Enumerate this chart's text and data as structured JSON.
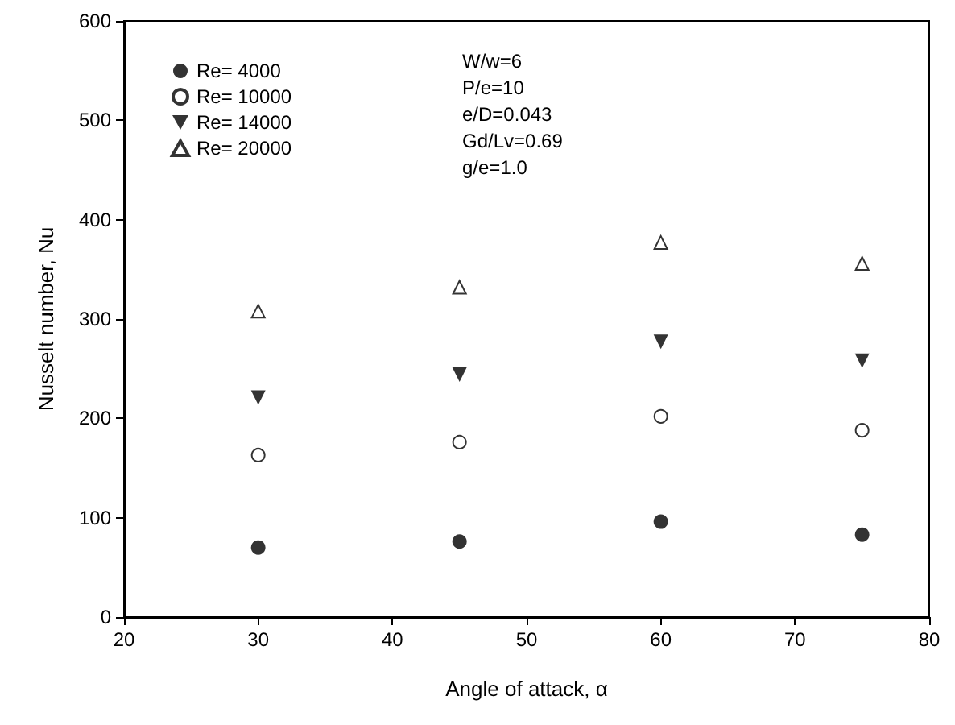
{
  "chart_data": {
    "type": "scatter",
    "xlabel": "Angle of attack, α",
    "ylabel": "Nusselt number, Nu",
    "x": [
      30,
      45,
      60,
      75
    ],
    "series": [
      {
        "name": "Re= 4000",
        "color": "#000000",
        "marker": "circle",
        "values": [
          70,
          76,
          96,
          83
        ]
      },
      {
        "name": "Re= 10000",
        "color": "#000000",
        "marker": "circle-open",
        "values": [
          163,
          176,
          202,
          188
        ]
      },
      {
        "name": "Re= 14000",
        "color": "#000000",
        "marker": "triangle-down",
        "values": [
          221,
          244,
          277,
          258
        ]
      },
      {
        "name": "Re= 20000",
        "color": "#000000",
        "marker": "triangle-open",
        "values": [
          308,
          332,
          377,
          356
        ]
      }
    ],
    "annotations": [
      "W/w=6",
      "P/e=10",
      "e/D=0.043",
      "Gd/Lv=0.69",
      "g/e=1.0"
    ],
    "xlim": [
      20,
      80
    ],
    "xticks": [
      20,
      30,
      40,
      50,
      60,
      70,
      80
    ],
    "ylim": [
      0,
      600
    ],
    "yticks": [
      0,
      100,
      200,
      300,
      400,
      500,
      600
    ],
    "grid": false,
    "legend": "top left"
  }
}
